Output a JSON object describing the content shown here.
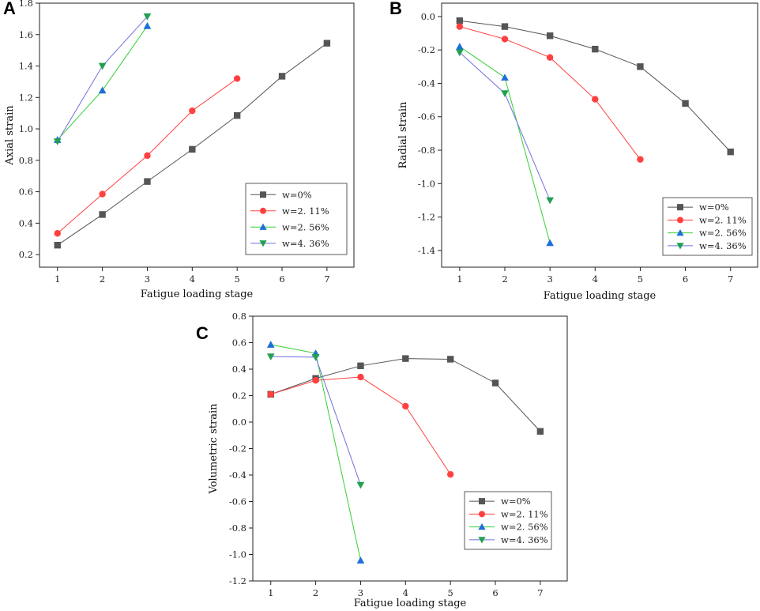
{
  "chart_data": [
    {
      "panel": "A",
      "type": "line",
      "title": "",
      "xlabel": "Fatigue loading stage",
      "ylabel": "Axial strain",
      "xlim": [
        0.6,
        7.6
      ],
      "ylim": [
        0.12,
        1.8
      ],
      "xticks": [
        1,
        2,
        3,
        4,
        5,
        6,
        7
      ],
      "yticks": [
        0.2,
        0.4,
        0.6,
        0.8,
        1.0,
        1.2,
        1.4,
        1.6,
        1.8
      ],
      "ytick_labels": [
        "0.2",
        "0.4",
        "0.6",
        "0.8",
        "1.0",
        "1.2",
        "1.4",
        "1.6",
        "1.8"
      ],
      "legend_position": "bottom-right",
      "series": [
        {
          "name": "w=0%",
          "color": "#555555",
          "marker": "square",
          "x": [
            1,
            2,
            3,
            4,
            5,
            6,
            7
          ],
          "y": [
            0.26,
            0.455,
            0.665,
            0.87,
            1.085,
            1.335,
            1.545
          ]
        },
        {
          "name": "w=2. 11%",
          "color": "#ff4040",
          "marker": "circle",
          "x": [
            1,
            2,
            3,
            4,
            5
          ],
          "y": [
            0.335,
            0.585,
            0.83,
            1.115,
            1.32
          ]
        },
        {
          "name": "w=2. 56%",
          "color": "#1e6fd6",
          "line_color": "#35d035",
          "marker": "triangle-up",
          "x": [
            1,
            2,
            3
          ],
          "y": [
            0.93,
            1.245,
            1.655
          ]
        },
        {
          "name": "w=4. 36%",
          "color": "#20a050",
          "line_color": "#7070dd",
          "marker": "triangle-down",
          "x": [
            1,
            2,
            3
          ],
          "y": [
            0.92,
            1.4,
            1.715
          ]
        }
      ]
    },
    {
      "panel": "B",
      "type": "line",
      "title": "",
      "xlabel": "Fatigue loading stage",
      "ylabel": "Radial strain",
      "xlim": [
        0.6,
        7.6
      ],
      "ylim": [
        -1.5,
        0.08
      ],
      "xticks": [
        1,
        2,
        3,
        4,
        5,
        6,
        7
      ],
      "yticks": [
        0.0,
        -0.2,
        -0.4,
        -0.6,
        -0.8,
        -1.0,
        -1.2,
        -1.4
      ],
      "ytick_labels": [
        "0.0",
        "-0.2",
        "-0.4",
        "-0.6",
        "-0.8",
        "-1.0",
        "-1.2",
        "-1.4"
      ],
      "legend_position": "bottom-right",
      "series": [
        {
          "name": "w=0%",
          "color": "#555555",
          "marker": "square",
          "x": [
            1,
            2,
            3,
            4,
            5,
            6,
            7
          ],
          "y": [
            -0.025,
            -0.06,
            -0.115,
            -0.195,
            -0.3,
            -0.52,
            -0.81
          ]
        },
        {
          "name": "w=2. 11%",
          "color": "#ff4040",
          "marker": "circle",
          "x": [
            1,
            2,
            3,
            4,
            5
          ],
          "y": [
            -0.06,
            -0.135,
            -0.245,
            -0.495,
            -0.855
          ]
        },
        {
          "name": "w=2. 56%",
          "color": "#1e6fd6",
          "line_color": "#35d035",
          "marker": "triangle-up",
          "x": [
            1,
            2,
            3
          ],
          "y": [
            -0.18,
            -0.365,
            -1.355
          ]
        },
        {
          "name": "w=4. 36%",
          "color": "#20a050",
          "line_color": "#7070dd",
          "marker": "triangle-down",
          "x": [
            1,
            2,
            3
          ],
          "y": [
            -0.215,
            -0.46,
            -1.1
          ]
        }
      ]
    },
    {
      "panel": "C",
      "type": "line",
      "title": "",
      "xlabel": "Fatigue loading stage",
      "ylabel": "Volumetric strain",
      "xlim": [
        0.6,
        7.6
      ],
      "ylim": [
        -1.2,
        0.8
      ],
      "xticks": [
        1,
        2,
        3,
        4,
        5,
        6,
        7
      ],
      "yticks": [
        0.8,
        0.6,
        0.4,
        0.2,
        0.0,
        -0.2,
        -0.4,
        -0.6,
        -0.8,
        -1.0,
        -1.2
      ],
      "ytick_labels": [
        "0.8",
        "0.6",
        "0.4",
        "0.2",
        "0.0",
        "-0.2",
        "-0.4",
        "-0.6",
        "-0.8",
        "-1.0",
        "-1.2"
      ],
      "legend_position": "bottom-right",
      "series": [
        {
          "name": "w=0%",
          "color": "#555555",
          "marker": "square",
          "x": [
            1,
            2,
            3,
            4,
            5,
            6,
            7
          ],
          "y": [
            0.21,
            0.33,
            0.425,
            0.48,
            0.475,
            0.295,
            -0.07
          ]
        },
        {
          "name": "w=2. 11%",
          "color": "#ff4040",
          "marker": "circle",
          "x": [
            1,
            2,
            3,
            4,
            5
          ],
          "y": [
            0.21,
            0.315,
            0.34,
            0.12,
            -0.395
          ]
        },
        {
          "name": "w=2. 56%",
          "color": "#1e6fd6",
          "line_color": "#35d035",
          "marker": "triangle-up",
          "x": [
            1,
            2,
            3
          ],
          "y": [
            0.585,
            0.52,
            -1.045
          ]
        },
        {
          "name": "w=4. 36%",
          "color": "#20a050",
          "line_color": "#7070dd",
          "marker": "triangle-down",
          "x": [
            1,
            2,
            3
          ],
          "y": [
            0.495,
            0.49,
            -0.475
          ]
        }
      ]
    }
  ]
}
